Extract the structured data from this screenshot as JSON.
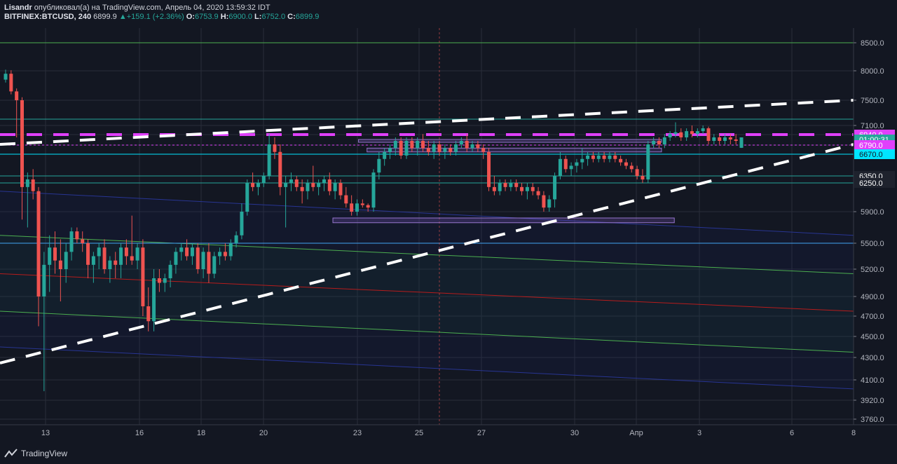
{
  "header": {
    "publisher": "Lisandr",
    "published_text": "опубликовал(а) на TradingView.com, Апрель 04, 2020 13:59:32 IDT",
    "symbol": "BITFINEX:BTCUSD, 240",
    "last": "6899.9",
    "change": "+159.1 (+2.36%)",
    "o_label": "O:",
    "o_value": "6753.9",
    "h_label": "H:",
    "h_value": "6900.0",
    "l_label": "L:",
    "l_value": "6752.0",
    "c_label": "C:",
    "c_value": "6899.9"
  },
  "footer": {
    "brand": "TradingView"
  },
  "colors": {
    "background": "#131722",
    "up": "#26a69a",
    "down": "#ef5350",
    "magenta": "#e040fb",
    "teal": "#26a69a",
    "green_line": "#4caf50",
    "red_line": "#b71c1c",
    "blue_line": "#283593",
    "purple_box": "#7e57c2",
    "trend_dashed": "#ffffff",
    "axis_text": "#b2b5be"
  },
  "chart_data": {
    "type": "candlestick",
    "price_axis": {
      "ticks": [
        8500,
        8000,
        7500,
        7100,
        6940,
        6790,
        6670,
        6350,
        6250,
        5900,
        5500,
        5200,
        4900,
        4700,
        4500,
        4300,
        4100,
        3920,
        3760
      ],
      "tick_labels": [
        "8500.0",
        "8000.0",
        "7500.0",
        "7100.0",
        "6940.0",
        "6790.0",
        "6670.0",
        "6350.0",
        "6250.0",
        "5900.0",
        "5500.0",
        "5200.0",
        "4900.0",
        "4700.0",
        "4500.0",
        "4300.0",
        "4100.0",
        "3920.0",
        "3760.0"
      ],
      "highlighted": [
        {
          "label": "6940.0",
          "color": "#e040fb",
          "text": "#ffffff"
        },
        {
          "label": "01:00:31",
          "color": "#26a69a",
          "text": "#ffffff"
        },
        {
          "label": "6790.0",
          "color": "#e040fb",
          "text": "#ffffff"
        },
        {
          "label": "6670.0",
          "color": "#00e5ff",
          "text": "#131722"
        },
        {
          "label": "6350.0",
          "color": "#1e222d",
          "text": "#ffffff"
        },
        {
          "label": "6250.0",
          "color": "#1e222d",
          "text": "#ffffff"
        }
      ]
    },
    "time_axis": {
      "labels": [
        "13",
        "16",
        "18",
        "20",
        "23",
        "25",
        "27",
        "30",
        "Апр",
        "3",
        "6",
        "8"
      ]
    },
    "candles": [
      {
        "o": 7850,
        "h": 8020,
        "l": 7800,
        "c": 7950
      },
      {
        "o": 7950,
        "h": 8010,
        "l": 7600,
        "c": 7650
      },
      {
        "o": 7650,
        "h": 7700,
        "l": 6900,
        "c": 7500
      },
      {
        "o": 7500,
        "h": 7550,
        "l": 5800,
        "c": 6200
      },
      {
        "o": 6200,
        "h": 6400,
        "l": 5700,
        "c": 6300
      },
      {
        "o": 6300,
        "h": 6450,
        "l": 6050,
        "c": 6150
      },
      {
        "o": 6150,
        "h": 6200,
        "l": 4600,
        "c": 4900
      },
      {
        "o": 4900,
        "h": 5400,
        "l": 4000,
        "c": 5250
      },
      {
        "o": 5250,
        "h": 5600,
        "l": 4950,
        "c": 5450
      },
      {
        "o": 5450,
        "h": 5650,
        "l": 5150,
        "c": 5300
      },
      {
        "o": 5300,
        "h": 5550,
        "l": 4850,
        "c": 5200
      },
      {
        "o": 5200,
        "h": 5500,
        "l": 5050,
        "c": 5400
      },
      {
        "o": 5400,
        "h": 5700,
        "l": 5300,
        "c": 5650
      },
      {
        "o": 5650,
        "h": 5700,
        "l": 5500,
        "c": 5550
      },
      {
        "o": 5550,
        "h": 5650,
        "l": 5400,
        "c": 5500
      },
      {
        "o": 5500,
        "h": 5550,
        "l": 5100,
        "c": 5250
      },
      {
        "o": 5250,
        "h": 5400,
        "l": 5050,
        "c": 5350
      },
      {
        "o": 5350,
        "h": 5500,
        "l": 5200,
        "c": 5450
      },
      {
        "o": 5450,
        "h": 5550,
        "l": 5150,
        "c": 5200
      },
      {
        "o": 5200,
        "h": 5350,
        "l": 5050,
        "c": 5300
      },
      {
        "o": 5300,
        "h": 5400,
        "l": 5100,
        "c": 5250
      },
      {
        "o": 5250,
        "h": 5500,
        "l": 5100,
        "c": 5450
      },
      {
        "o": 5450,
        "h": 5550,
        "l": 5250,
        "c": 5350
      },
      {
        "o": 5350,
        "h": 5850,
        "l": 5250,
        "c": 5300
      },
      {
        "o": 5300,
        "h": 5500,
        "l": 5200,
        "c": 5450
      },
      {
        "o": 5450,
        "h": 5550,
        "l": 4700,
        "c": 4800
      },
      {
        "o": 4800,
        "h": 5000,
        "l": 4550,
        "c": 4650
      },
      {
        "o": 4650,
        "h": 5200,
        "l": 4550,
        "c": 5100
      },
      {
        "o": 5100,
        "h": 5200,
        "l": 4950,
        "c": 5050
      },
      {
        "o": 5050,
        "h": 5150,
        "l": 4950,
        "c": 5100
      },
      {
        "o": 5100,
        "h": 5300,
        "l": 5000,
        "c": 5250
      },
      {
        "o": 5250,
        "h": 5450,
        "l": 5150,
        "c": 5400
      },
      {
        "o": 5400,
        "h": 5500,
        "l": 5300,
        "c": 5450
      },
      {
        "o": 5450,
        "h": 5550,
        "l": 5300,
        "c": 5350
      },
      {
        "o": 5350,
        "h": 5500,
        "l": 5250,
        "c": 5450
      },
      {
        "o": 5450,
        "h": 5500,
        "l": 5150,
        "c": 5200
      },
      {
        "o": 5200,
        "h": 5450,
        "l": 5100,
        "c": 5400
      },
      {
        "o": 5400,
        "h": 5500,
        "l": 5050,
        "c": 5150
      },
      {
        "o": 5150,
        "h": 5400,
        "l": 5100,
        "c": 5350
      },
      {
        "o": 5350,
        "h": 5450,
        "l": 5250,
        "c": 5400
      },
      {
        "o": 5400,
        "h": 5500,
        "l": 5300,
        "c": 5350
      },
      {
        "o": 5350,
        "h": 5550,
        "l": 5300,
        "c": 5500
      },
      {
        "o": 5500,
        "h": 5650,
        "l": 5450,
        "c": 5600
      },
      {
        "o": 5600,
        "h": 6000,
        "l": 5550,
        "c": 5900
      },
      {
        "o": 5900,
        "h": 6300,
        "l": 5850,
        "c": 6250
      },
      {
        "o": 6250,
        "h": 6400,
        "l": 6150,
        "c": 6200
      },
      {
        "o": 6200,
        "h": 6300,
        "l": 6100,
        "c": 6250
      },
      {
        "o": 6250,
        "h": 6400,
        "l": 6200,
        "c": 6350
      },
      {
        "o": 6350,
        "h": 6950,
        "l": 6300,
        "c": 6800
      },
      {
        "o": 6800,
        "h": 6900,
        "l": 6600,
        "c": 6700
      },
      {
        "o": 6700,
        "h": 6800,
        "l": 6100,
        "c": 6200
      },
      {
        "o": 6200,
        "h": 6350,
        "l": 5700,
        "c": 6250
      },
      {
        "o": 6250,
        "h": 6400,
        "l": 6150,
        "c": 6300
      },
      {
        "o": 6300,
        "h": 6350,
        "l": 6150,
        "c": 6200
      },
      {
        "o": 6200,
        "h": 6300,
        "l": 6000,
        "c": 6150
      },
      {
        "o": 6150,
        "h": 6300,
        "l": 6050,
        "c": 6250
      },
      {
        "o": 6250,
        "h": 6500,
        "l": 6150,
        "c": 6200
      },
      {
        "o": 6200,
        "h": 6300,
        "l": 6100,
        "c": 6250
      },
      {
        "o": 6250,
        "h": 6350,
        "l": 6150,
        "c": 6300
      },
      {
        "o": 6300,
        "h": 6400,
        "l": 6100,
        "c": 6150
      },
      {
        "o": 6150,
        "h": 6300,
        "l": 6050,
        "c": 6250
      },
      {
        "o": 6250,
        "h": 6300,
        "l": 6050,
        "c": 6100
      },
      {
        "o": 6100,
        "h": 6200,
        "l": 5950,
        "c": 6000
      },
      {
        "o": 6000,
        "h": 6100,
        "l": 5850,
        "c": 5900
      },
      {
        "o": 5900,
        "h": 6050,
        "l": 5850,
        "c": 6000
      },
      {
        "o": 6000,
        "h": 6050,
        "l": 5950,
        "c": 5980
      },
      {
        "o": 5980,
        "h": 6000,
        "l": 5900,
        "c": 5950
      },
      {
        "o": 5950,
        "h": 6450,
        "l": 5900,
        "c": 6400
      },
      {
        "o": 6400,
        "h": 6700,
        "l": 6300,
        "c": 6600
      },
      {
        "o": 6600,
        "h": 6750,
        "l": 6500,
        "c": 6700
      },
      {
        "o": 6700,
        "h": 6800,
        "l": 6600,
        "c": 6750
      },
      {
        "o": 6750,
        "h": 6900,
        "l": 6650,
        "c": 6850
      },
      {
        "o": 6850,
        "h": 6900,
        "l": 6600,
        "c": 6650
      },
      {
        "o": 6650,
        "h": 6900,
        "l": 6600,
        "c": 6850
      },
      {
        "o": 6850,
        "h": 6900,
        "l": 6700,
        "c": 6750
      },
      {
        "o": 6750,
        "h": 6900,
        "l": 6650,
        "c": 6850
      },
      {
        "o": 6850,
        "h": 6950,
        "l": 6700,
        "c": 6750
      },
      {
        "o": 6750,
        "h": 6850,
        "l": 6650,
        "c": 6700
      },
      {
        "o": 6700,
        "h": 6850,
        "l": 6600,
        "c": 6800
      },
      {
        "o": 6800,
        "h": 6850,
        "l": 6650,
        "c": 6700
      },
      {
        "o": 6700,
        "h": 6800,
        "l": 6600,
        "c": 6750
      },
      {
        "o": 6750,
        "h": 6800,
        "l": 6650,
        "c": 6700
      },
      {
        "o": 6700,
        "h": 6850,
        "l": 6650,
        "c": 6800
      },
      {
        "o": 6800,
        "h": 6900,
        "l": 6750,
        "c": 6850
      },
      {
        "o": 6850,
        "h": 6950,
        "l": 6700,
        "c": 6750
      },
      {
        "o": 6750,
        "h": 6850,
        "l": 6700,
        "c": 6800
      },
      {
        "o": 6800,
        "h": 6850,
        "l": 6700,
        "c": 6750
      },
      {
        "o": 6750,
        "h": 6800,
        "l": 6600,
        "c": 6700
      },
      {
        "o": 6700,
        "h": 6750,
        "l": 6150,
        "c": 6200
      },
      {
        "o": 6200,
        "h": 6350,
        "l": 6100,
        "c": 6150
      },
      {
        "o": 6150,
        "h": 6300,
        "l": 6100,
        "c": 6250
      },
      {
        "o": 6250,
        "h": 6300,
        "l": 6150,
        "c": 6200
      },
      {
        "o": 6200,
        "h": 6300,
        "l": 6150,
        "c": 6250
      },
      {
        "o": 6250,
        "h": 6300,
        "l": 6150,
        "c": 6200
      },
      {
        "o": 6200,
        "h": 6250,
        "l": 6100,
        "c": 6150
      },
      {
        "o": 6150,
        "h": 6250,
        "l": 6050,
        "c": 6200
      },
      {
        "o": 6200,
        "h": 6250,
        "l": 6100,
        "c": 6150
      },
      {
        "o": 6150,
        "h": 6200,
        "l": 6050,
        "c": 6100
      },
      {
        "o": 6100,
        "h": 6150,
        "l": 5900,
        "c": 5950
      },
      {
        "o": 5950,
        "h": 6100,
        "l": 5900,
        "c": 6050
      },
      {
        "o": 6050,
        "h": 6400,
        "l": 5950,
        "c": 6350
      },
      {
        "o": 6350,
        "h": 6700,
        "l": 6300,
        "c": 6600
      },
      {
        "o": 6600,
        "h": 6650,
        "l": 6400,
        "c": 6450
      },
      {
        "o": 6450,
        "h": 6550,
        "l": 6350,
        "c": 6500
      },
      {
        "o": 6500,
        "h": 6600,
        "l": 6400,
        "c": 6550
      },
      {
        "o": 6550,
        "h": 6750,
        "l": 6450,
        "c": 6600
      },
      {
        "o": 6600,
        "h": 6700,
        "l": 6500,
        "c": 6650
      },
      {
        "o": 6650,
        "h": 6700,
        "l": 6550,
        "c": 6600
      },
      {
        "o": 6600,
        "h": 6700,
        "l": 6550,
        "c": 6650
      },
      {
        "o": 6650,
        "h": 6700,
        "l": 6550,
        "c": 6600
      },
      {
        "o": 6600,
        "h": 6700,
        "l": 6550,
        "c": 6650
      },
      {
        "o": 6650,
        "h": 6700,
        "l": 6550,
        "c": 6600
      },
      {
        "o": 6600,
        "h": 6650,
        "l": 6500,
        "c": 6550
      },
      {
        "o": 6550,
        "h": 6600,
        "l": 6450,
        "c": 6500
      },
      {
        "o": 6500,
        "h": 6550,
        "l": 6400,
        "c": 6450
      },
      {
        "o": 6450,
        "h": 6500,
        "l": 6300,
        "c": 6350
      },
      {
        "o": 6350,
        "h": 6450,
        "l": 6250,
        "c": 6300
      },
      {
        "o": 6300,
        "h": 6850,
        "l": 6250,
        "c": 6800
      },
      {
        "o": 6800,
        "h": 6900,
        "l": 6750,
        "c": 6850
      },
      {
        "o": 6850,
        "h": 6900,
        "l": 6750,
        "c": 6800
      },
      {
        "o": 6800,
        "h": 6950,
        "l": 6750,
        "c": 6900
      },
      {
        "o": 6900,
        "h": 7000,
        "l": 6850,
        "c": 6950
      },
      {
        "o": 6950,
        "h": 7150,
        "l": 6900,
        "c": 6980
      },
      {
        "o": 6980,
        "h": 7050,
        "l": 6850,
        "c": 6900
      },
      {
        "o": 6900,
        "h": 7050,
        "l": 6850,
        "c": 7000
      },
      {
        "o": 7000,
        "h": 7100,
        "l": 6900,
        "c": 6950
      },
      {
        "o": 6950,
        "h": 7050,
        "l": 6900,
        "c": 7000
      },
      {
        "o": 7000,
        "h": 7100,
        "l": 6950,
        "c": 7050
      },
      {
        "o": 7050,
        "h": 7080,
        "l": 6800,
        "c": 6850
      },
      {
        "o": 6850,
        "h": 6950,
        "l": 6800,
        "c": 6900
      },
      {
        "o": 6900,
        "h": 6950,
        "l": 6800,
        "c": 6850
      },
      {
        "o": 6850,
        "h": 6950,
        "l": 6800,
        "c": 6900
      },
      {
        "o": 6900,
        "h": 6950,
        "l": 6800,
        "c": 6870
      },
      {
        "o": 6870,
        "h": 6950,
        "l": 6800,
        "c": 6850
      },
      {
        "o": 6753.9,
        "h": 6900,
        "l": 6752,
        "c": 6899.9
      }
    ],
    "horizontal_levels": [
      {
        "price": 8500,
        "color": "#4caf50",
        "style": "solid"
      },
      {
        "price": 7200,
        "color": "#26a69a",
        "style": "solid"
      },
      {
        "price": 6940,
        "color": "#e040fb",
        "style": "dashed"
      },
      {
        "price": 6790,
        "color": "#e040fb",
        "style": "dotted"
      },
      {
        "price": 6670,
        "color": "#00e5ff",
        "style": "solid"
      },
      {
        "price": 6350,
        "color": "#26a69a",
        "style": "solid"
      },
      {
        "price": 6250,
        "color": "#26a69a",
        "style": "solid"
      },
      {
        "price": 5500,
        "color": "#42a5f5",
        "style": "solid"
      }
    ],
    "trendlines": [
      {
        "from": [
          0,
          4250
        ],
        "to": [
          1,
          6800
        ],
        "color": "#ffffff",
        "style": "dashed"
      },
      {
        "from": [
          0,
          6800
        ],
        "to": [
          1,
          7500
        ],
        "color": "#ffffff",
        "style": "dashed"
      }
    ],
    "channels": [
      {
        "color": "#4caf50",
        "from": [
          0,
          5600
        ],
        "to": [
          1,
          5150
        ]
      },
      {
        "color": "#b71c1c",
        "from": [
          0,
          5150
        ],
        "to": [
          1,
          4750
        ]
      },
      {
        "color": "#4caf50",
        "from": [
          0,
          4750
        ],
        "to": [
          1,
          4350
        ]
      },
      {
        "color": "#283593",
        "from": [
          0,
          6150
        ],
        "to": [
          1,
          5600
        ]
      },
      {
        "color": "#283593",
        "from": [
          0,
          4400
        ],
        "to": [
          1,
          4020
        ]
      }
    ],
    "boxes": [
      {
        "p_top": 6870,
        "p_bot": 6830,
        "t_from": 0.42,
        "t_to": 0.775
      },
      {
        "p_top": 6750,
        "p_bot": 6700,
        "t_from": 0.43,
        "t_to": 0.775
      },
      {
        "p_top": 5820,
        "p_bot": 5760,
        "t_from": 0.39,
        "t_to": 0.79
      }
    ],
    "timer_price": 6870
  }
}
